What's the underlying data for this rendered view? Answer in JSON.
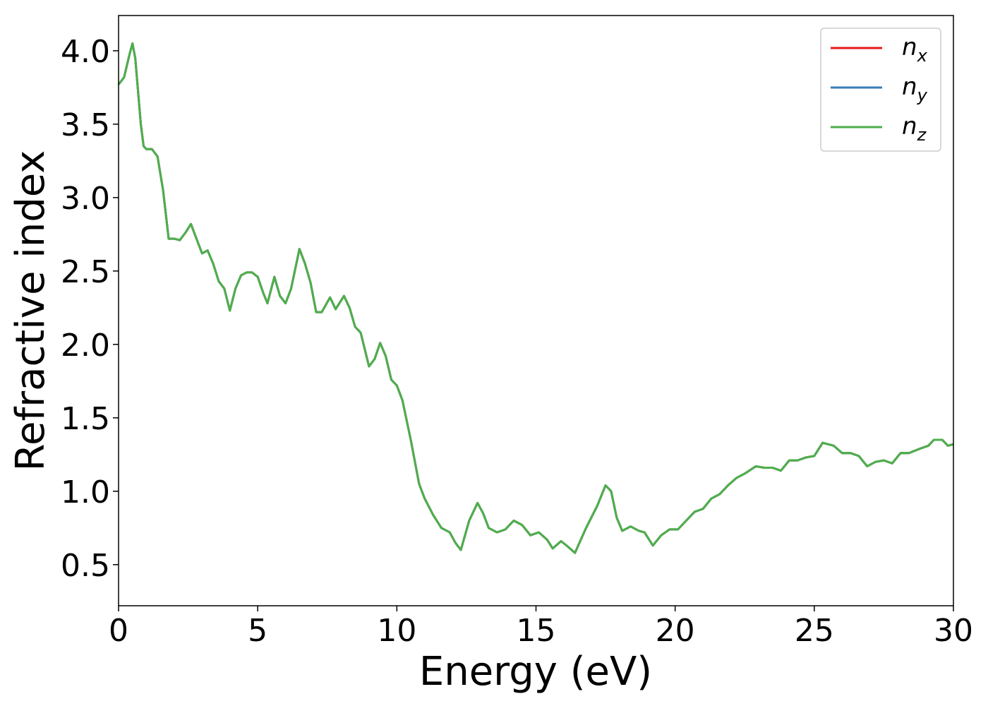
{
  "chart_data": {
    "type": "line",
    "xlabel": "Energy (eV)",
    "ylabel": "Refractive index",
    "xlim": [
      0,
      30
    ],
    "xticks": [
      0,
      5,
      10,
      15,
      20,
      25,
      30
    ],
    "ylim": [
      0.22,
      4.24
    ],
    "yticks": [
      {
        "value": 0.5,
        "label": "0.5"
      },
      {
        "value": 1.0,
        "label": "1.0"
      },
      {
        "value": 1.5,
        "label": "1.5"
      },
      {
        "value": 2.0,
        "label": "2.0"
      },
      {
        "value": 2.5,
        "label": "2.5"
      },
      {
        "value": 3.0,
        "label": "3.0"
      },
      {
        "value": 3.5,
        "label": "3.5"
      },
      {
        "value": 4.0,
        "label": "4.0"
      }
    ],
    "legend": "upper right",
    "x": [
      0,
      0.2,
      0.4,
      0.5,
      0.6,
      0.8,
      0.9,
      1.0,
      1.2,
      1.4,
      1.6,
      1.8,
      2.0,
      2.2,
      2.4,
      2.6,
      2.8,
      3.0,
      3.2,
      3.4,
      3.6,
      3.8,
      4.0,
      4.2,
      4.4,
      4.6,
      4.8,
      5.0,
      5.2,
      5.35,
      5.6,
      5.8,
      6.0,
      6.2,
      6.5,
      6.7,
      6.9,
      7.1,
      7.3,
      7.6,
      7.8,
      8.1,
      8.3,
      8.5,
      8.7,
      9.0,
      9.2,
      9.4,
      9.6,
      9.8,
      10.0,
      10.2,
      10.5,
      10.8,
      11.0,
      11.3,
      11.6,
      11.9,
      12.1,
      12.3,
      12.6,
      12.9,
      13.1,
      13.3,
      13.6,
      13.9,
      14.2,
      14.5,
      14.8,
      15.1,
      15.4,
      15.6,
      15.9,
      16.1,
      16.4,
      16.8,
      17.2,
      17.5,
      17.7,
      17.9,
      18.1,
      18.4,
      18.7,
      18.9,
      19.2,
      19.5,
      19.8,
      20.1,
      20.4,
      20.7,
      21.0,
      21.3,
      21.6,
      21.9,
      22.2,
      22.5,
      22.9,
      23.2,
      23.5,
      23.8,
      24.1,
      24.4,
      24.7,
      25.0,
      25.3,
      25.7,
      26.0,
      26.3,
      26.6,
      26.9,
      27.2,
      27.5,
      27.8,
      28.1,
      28.4,
      28.8,
      29.1,
      29.3,
      29.6,
      29.8,
      30.0
    ],
    "series": [
      {
        "name": "nx",
        "color": "#e41a1c",
        "values": [
          3.77,
          3.82,
          3.98,
          4.05,
          3.95,
          3.5,
          3.35,
          3.33,
          3.33,
          3.28,
          3.05,
          2.72,
          2.72,
          2.71,
          2.76,
          2.82,
          2.72,
          2.62,
          2.64,
          2.55,
          2.43,
          2.38,
          2.23,
          2.38,
          2.47,
          2.49,
          2.49,
          2.46,
          2.35,
          2.28,
          2.46,
          2.33,
          2.28,
          2.38,
          2.65,
          2.55,
          2.42,
          2.22,
          2.22,
          2.32,
          2.24,
          2.33,
          2.25,
          2.12,
          2.08,
          1.85,
          1.9,
          2.01,
          1.92,
          1.76,
          1.72,
          1.62,
          1.35,
          1.05,
          0.95,
          0.84,
          0.75,
          0.72,
          0.65,
          0.6,
          0.8,
          0.92,
          0.85,
          0.75,
          0.72,
          0.74,
          0.8,
          0.77,
          0.7,
          0.72,
          0.67,
          0.61,
          0.66,
          0.63,
          0.58,
          0.75,
          0.9,
          1.04,
          1.0,
          0.82,
          0.73,
          0.76,
          0.73,
          0.72,
          0.63,
          0.7,
          0.74,
          0.74,
          0.8,
          0.86,
          0.88,
          0.95,
          0.98,
          1.04,
          1.09,
          1.12,
          1.17,
          1.16,
          1.16,
          1.14,
          1.21,
          1.21,
          1.23,
          1.24,
          1.33,
          1.31,
          1.26,
          1.26,
          1.24,
          1.17,
          1.2,
          1.21,
          1.19,
          1.26,
          1.26,
          1.29,
          1.31,
          1.35,
          1.35,
          1.31,
          1.32
        ]
      },
      {
        "name": "ny",
        "color": "#377eb8",
        "values": [
          3.77,
          3.82,
          3.98,
          4.05,
          3.95,
          3.5,
          3.35,
          3.33,
          3.33,
          3.28,
          3.05,
          2.72,
          2.72,
          2.71,
          2.76,
          2.82,
          2.72,
          2.62,
          2.64,
          2.55,
          2.43,
          2.38,
          2.23,
          2.38,
          2.47,
          2.49,
          2.49,
          2.46,
          2.35,
          2.28,
          2.46,
          2.33,
          2.28,
          2.38,
          2.65,
          2.55,
          2.42,
          2.22,
          2.22,
          2.32,
          2.24,
          2.33,
          2.25,
          2.12,
          2.08,
          1.85,
          1.9,
          2.01,
          1.92,
          1.76,
          1.72,
          1.62,
          1.35,
          1.05,
          0.95,
          0.84,
          0.75,
          0.72,
          0.65,
          0.6,
          0.8,
          0.92,
          0.85,
          0.75,
          0.72,
          0.74,
          0.8,
          0.77,
          0.7,
          0.72,
          0.67,
          0.61,
          0.66,
          0.63,
          0.58,
          0.75,
          0.9,
          1.04,
          1.0,
          0.82,
          0.73,
          0.76,
          0.73,
          0.72,
          0.63,
          0.7,
          0.74,
          0.74,
          0.8,
          0.86,
          0.88,
          0.95,
          0.98,
          1.04,
          1.09,
          1.12,
          1.17,
          1.16,
          1.16,
          1.14,
          1.21,
          1.21,
          1.23,
          1.24,
          1.33,
          1.31,
          1.26,
          1.26,
          1.24,
          1.17,
          1.2,
          1.21,
          1.19,
          1.26,
          1.26,
          1.29,
          1.31,
          1.35,
          1.35,
          1.31,
          1.32
        ]
      },
      {
        "name": "nz",
        "color": "#4daf4a",
        "values": [
          3.77,
          3.82,
          3.98,
          4.05,
          3.95,
          3.5,
          3.35,
          3.33,
          3.33,
          3.28,
          3.05,
          2.72,
          2.72,
          2.71,
          2.76,
          2.82,
          2.72,
          2.62,
          2.64,
          2.55,
          2.43,
          2.38,
          2.23,
          2.38,
          2.47,
          2.49,
          2.49,
          2.46,
          2.35,
          2.28,
          2.46,
          2.33,
          2.28,
          2.38,
          2.65,
          2.55,
          2.42,
          2.22,
          2.22,
          2.32,
          2.24,
          2.33,
          2.25,
          2.12,
          2.08,
          1.85,
          1.9,
          2.01,
          1.92,
          1.76,
          1.72,
          1.62,
          1.35,
          1.05,
          0.95,
          0.84,
          0.75,
          0.72,
          0.65,
          0.6,
          0.8,
          0.92,
          0.85,
          0.75,
          0.72,
          0.74,
          0.8,
          0.77,
          0.7,
          0.72,
          0.67,
          0.61,
          0.66,
          0.63,
          0.58,
          0.75,
          0.9,
          1.04,
          1.0,
          0.82,
          0.73,
          0.76,
          0.73,
          0.72,
          0.63,
          0.7,
          0.74,
          0.74,
          0.8,
          0.86,
          0.88,
          0.95,
          0.98,
          1.04,
          1.09,
          1.12,
          1.17,
          1.16,
          1.16,
          1.14,
          1.21,
          1.21,
          1.23,
          1.24,
          1.33,
          1.31,
          1.26,
          1.26,
          1.24,
          1.17,
          1.2,
          1.21,
          1.19,
          1.26,
          1.26,
          1.29,
          1.31,
          1.35,
          1.35,
          1.31,
          1.32
        ]
      }
    ]
  }
}
